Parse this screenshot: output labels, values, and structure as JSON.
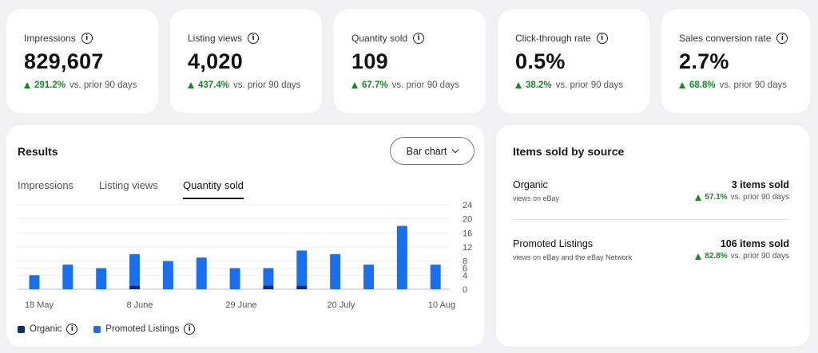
{
  "kpis": [
    {
      "label": "Impressions",
      "value": "829,607",
      "change": "291.2%",
      "suffix": "vs. prior 90 days"
    },
    {
      "label": "Listing views",
      "value": "4,020",
      "change": "437.4%",
      "suffix": "vs. prior 90 days"
    },
    {
      "label": "Quantity sold",
      "value": "109",
      "change": "67.7%",
      "suffix": "vs. prior 90 days"
    },
    {
      "label": "Click-through rate",
      "value": "0.5%",
      "change": "38.2%",
      "suffix": "vs. prior 90 days"
    },
    {
      "label": "Sales conversion rate",
      "value": "2.7%",
      "change": "68.8%",
      "suffix": "vs. prior 90 days"
    }
  ],
  "results": {
    "title": "Results",
    "chart_type_label": "Bar chart",
    "tabs": [
      "Impressions",
      "Listing views",
      "Quantity sold"
    ],
    "active_tab": "Quantity sold"
  },
  "chart_data": {
    "type": "bar",
    "stacked": true,
    "x_tick_labels": [
      "18 May",
      "8 June",
      "29 June",
      "20 July",
      "10 Aug"
    ],
    "y_ticks": [
      0,
      4,
      6,
      8,
      12,
      16,
      20,
      24
    ],
    "ylim": [
      0,
      24
    ],
    "series": [
      {
        "name": "Organic",
        "color": "#0a2d6e",
        "values": [
          0,
          0,
          0,
          1,
          0,
          0,
          0,
          1,
          1,
          0,
          0,
          0,
          0
        ]
      },
      {
        "name": "Promoted Listings",
        "color": "#1a6fef",
        "values": [
          4,
          7,
          6,
          9,
          8,
          9,
          6,
          5,
          10,
          10,
          7,
          18,
          7
        ]
      }
    ],
    "legend_position": "bottom-left",
    "grid": true
  },
  "source": {
    "title": "Items sold by source",
    "rows": [
      {
        "name": "Organic",
        "sub": "views on eBay",
        "value": "3 items sold",
        "change": "57.1%",
        "suffix": "vs. prior 90 days"
      },
      {
        "name": "Promoted Listings",
        "sub": "views on eBay and the eBay Network",
        "value": "106 items sold",
        "change": "82.8%",
        "suffix": "vs. prior 90 days"
      }
    ]
  },
  "colors": {
    "positive": "#148a1f",
    "organic": "#0a2d6e",
    "promoted": "#1a6fef"
  }
}
